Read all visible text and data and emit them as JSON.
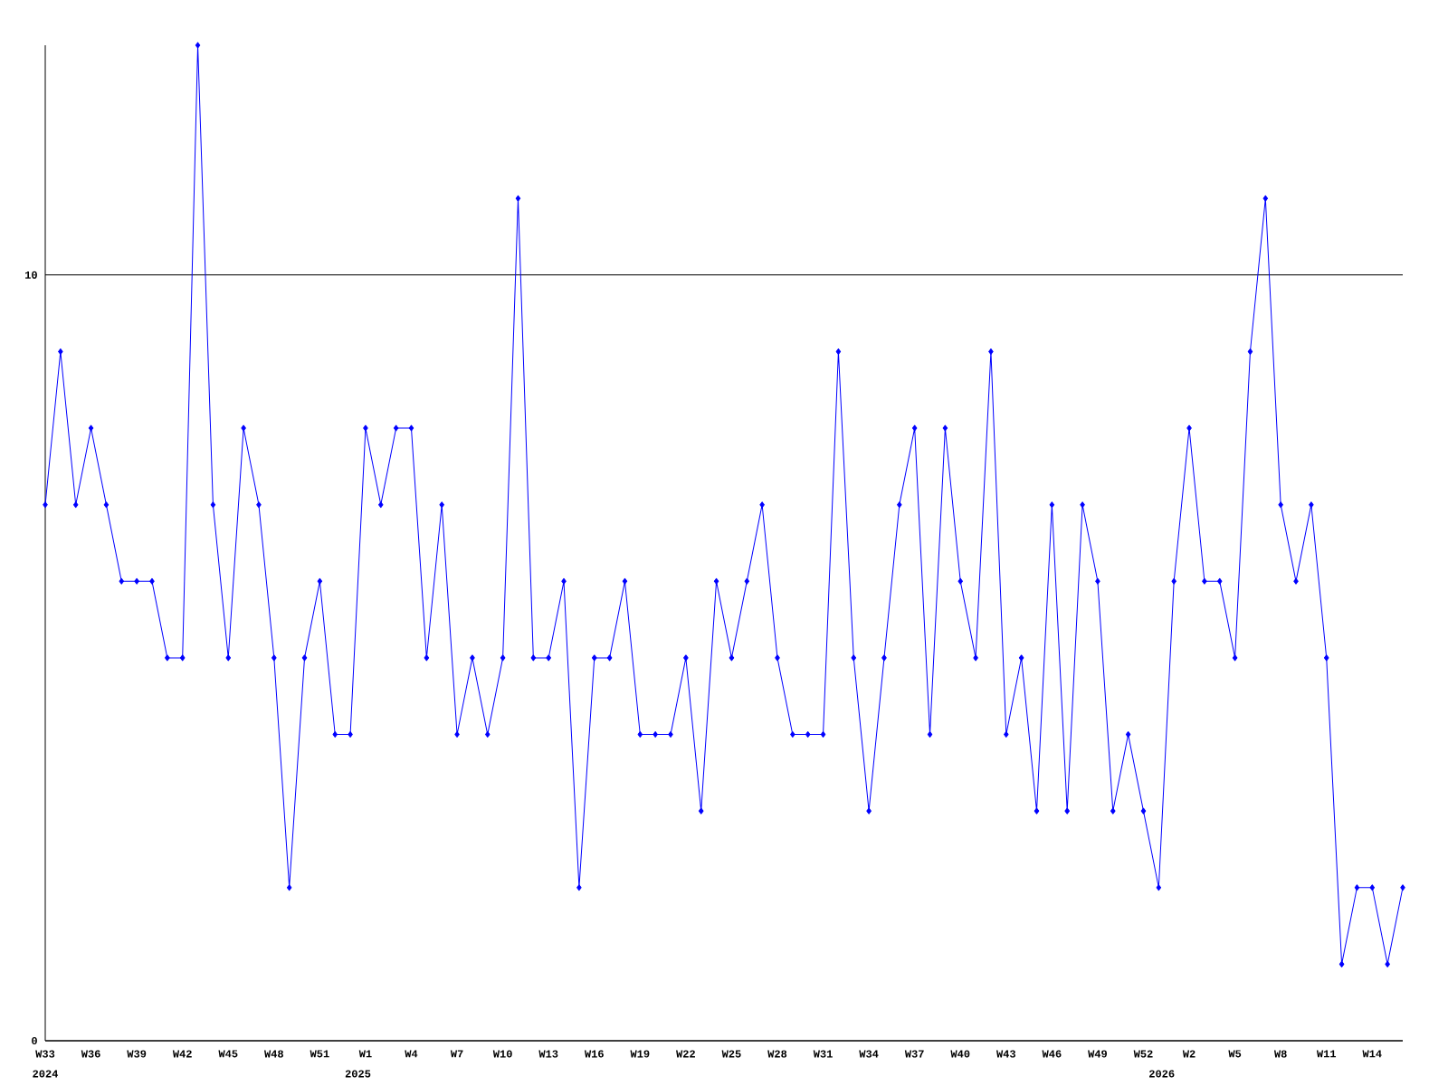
{
  "chart_data": {
    "type": "line",
    "color": "#0000ff",
    "marker": "diamond",
    "grid": "y",
    "categories": [
      "W33",
      null,
      null,
      "W36",
      null,
      null,
      "W39",
      null,
      null,
      "W42",
      null,
      null,
      "W45",
      null,
      null,
      "W48",
      null,
      null,
      "W51",
      null,
      null,
      "W1",
      null,
      null,
      "W4",
      null,
      null,
      "W7",
      null,
      null,
      "W10",
      null,
      null,
      "W13",
      null,
      null,
      "W16",
      null,
      null,
      "W19",
      null,
      null,
      "W22",
      null,
      null,
      "W25",
      null,
      null,
      "W28",
      null,
      null,
      "W31",
      null,
      null,
      "W34",
      null,
      null,
      "W37",
      null,
      null,
      "W40",
      null,
      null,
      "W43",
      null,
      null,
      "W46",
      null,
      null,
      "W49",
      null,
      null,
      "W52",
      null,
      null,
      "W2",
      null,
      null,
      "W5",
      null,
      null,
      "W8",
      null,
      null,
      "W11",
      null,
      null,
      "W14",
      null,
      null
    ],
    "values": [
      7,
      9,
      7,
      8,
      7,
      6,
      6,
      6,
      5,
      5,
      13,
      7,
      5,
      8,
      7,
      5,
      2,
      5,
      6,
      4,
      4,
      8,
      7,
      8,
      8,
      5,
      7,
      4,
      5,
      4,
      5,
      11,
      5,
      5,
      6,
      2,
      5,
      5,
      6,
      4,
      4,
      4,
      5,
      3,
      6,
      5,
      6,
      7,
      5,
      4,
      4,
      4,
      9,
      5,
      3,
      5,
      7,
      8,
      4,
      8,
      6,
      5,
      9,
      4,
      5,
      3,
      7,
      3,
      7,
      6,
      3,
      4,
      3,
      2,
      6,
      8,
      6,
      6,
      5,
      9,
      11,
      7,
      6,
      7,
      5,
      1,
      2,
      2,
      1,
      2
    ],
    "ylim": [
      0,
      13
    ],
    "yticks": [
      0,
      10
    ],
    "annotations": [
      "2024",
      "2025",
      "2026"
    ]
  }
}
